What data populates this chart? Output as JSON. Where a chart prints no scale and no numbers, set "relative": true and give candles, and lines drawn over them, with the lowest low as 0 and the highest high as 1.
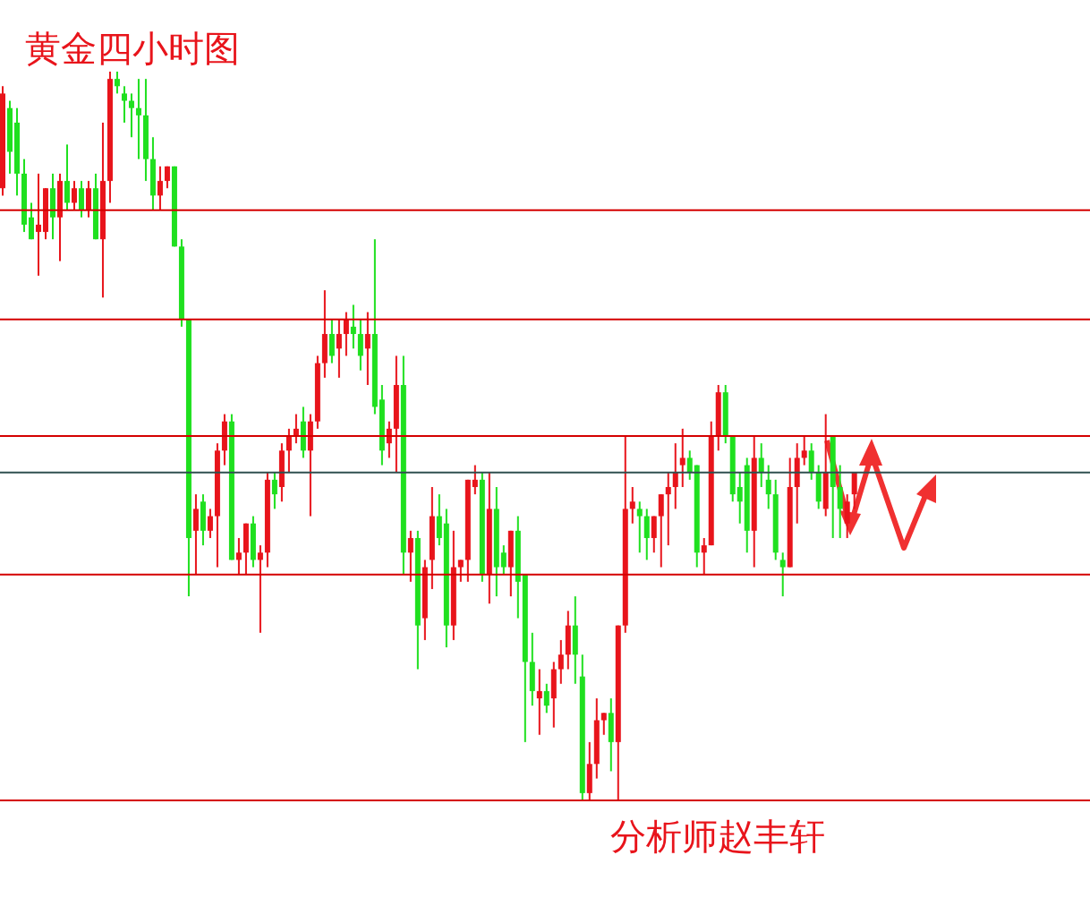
{
  "chart_data": {
    "type": "candlestick",
    "title": "黄金四小时图",
    "relative": true,
    "tick_labels": false,
    "annotations": [
      "分析师赵丰轩"
    ],
    "categories": [
      null,
      null,
      null,
      null,
      null,
      null,
      null,
      null,
      null,
      null,
      null,
      null,
      null,
      null,
      null,
      null,
      null,
      null,
      null,
      null,
      null,
      null,
      null,
      null,
      null,
      null,
      null,
      null,
      null,
      null,
      null,
      null,
      null,
      null,
      null,
      null,
      null,
      null,
      null,
      null,
      null,
      null,
      null,
      null,
      null,
      null,
      null,
      null,
      null,
      null,
      null,
      null,
      null,
      null,
      null,
      null,
      null,
      null,
      null,
      null,
      null,
      null,
      null,
      null,
      null,
      null,
      null,
      null,
      null,
      null,
      null,
      null,
      null,
      null,
      null,
      null,
      null,
      null,
      null,
      null,
      null,
      null,
      null,
      null,
      null,
      null,
      null,
      null,
      null,
      null,
      null,
      null,
      null,
      null,
      null,
      null,
      null,
      null,
      null,
      null,
      null,
      null,
      null,
      null,
      null,
      null,
      null,
      null,
      null,
      null,
      null,
      null,
      null,
      null,
      null,
      null,
      null,
      null,
      null,
      null
    ],
    "ohlc": [
      [
        0.84,
        0.98,
        0.83,
        0.97
      ],
      [
        0.95,
        0.96,
        0.86,
        0.89
      ],
      [
        0.93,
        0.95,
        0.83,
        0.86
      ],
      [
        0.86,
        0.88,
        0.78,
        0.79
      ],
      [
        0.8,
        0.82,
        0.77,
        0.77
      ],
      [
        0.78,
        0.86,
        0.72,
        0.79
      ],
      [
        0.78,
        0.84,
        0.77,
        0.84
      ],
      [
        0.84,
        0.86,
        0.77,
        0.8
      ],
      [
        0.8,
        0.86,
        0.74,
        0.85
      ],
      [
        0.85,
        0.9,
        0.81,
        0.82
      ],
      [
        0.82,
        0.85,
        0.81,
        0.84
      ],
      [
        0.84,
        0.85,
        0.8,
        0.81
      ],
      [
        0.81,
        0.85,
        0.8,
        0.84
      ],
      [
        0.84,
        0.86,
        0.77,
        0.77
      ],
      [
        0.77,
        0.93,
        0.69,
        0.85
      ],
      [
        0.85,
        1.0,
        0.82,
        0.99
      ],
      [
        0.99,
        1.0,
        0.97,
        0.98
      ],
      [
        0.97,
        0.98,
        0.93,
        0.96
      ],
      [
        0.96,
        0.97,
        0.91,
        0.95
      ],
      [
        0.95,
        0.99,
        0.88,
        0.94
      ],
      [
        0.94,
        0.99,
        0.85,
        0.88
      ],
      [
        0.88,
        0.91,
        0.81,
        0.83
      ],
      [
        0.83,
        0.87,
        0.81,
        0.85
      ],
      [
        0.85,
        0.87,
        0.84,
        0.87
      ],
      [
        0.87,
        0.87,
        0.76,
        0.76
      ],
      [
        0.76,
        0.77,
        0.65,
        0.66
      ],
      [
        0.66,
        0.66,
        0.28,
        0.36
      ],
      [
        0.37,
        0.42,
        0.31,
        0.4
      ],
      [
        0.41,
        0.42,
        0.35,
        0.37
      ],
      [
        0.37,
        0.4,
        0.36,
        0.39
      ],
      [
        0.39,
        0.49,
        0.32,
        0.48
      ],
      [
        0.48,
        0.53,
        0.46,
        0.52
      ],
      [
        0.52,
        0.53,
        0.33,
        0.33
      ],
      [
        0.33,
        0.36,
        0.31,
        0.34
      ],
      [
        0.34,
        0.38,
        0.31,
        0.38
      ],
      [
        0.38,
        0.39,
        0.32,
        0.33
      ],
      [
        0.33,
        0.35,
        0.23,
        0.34
      ],
      [
        0.34,
        0.45,
        0.32,
        0.44
      ],
      [
        0.44,
        0.45,
        0.4,
        0.42
      ],
      [
        0.43,
        0.49,
        0.41,
        0.48
      ],
      [
        0.48,
        0.51,
        0.45,
        0.5
      ],
      [
        0.5,
        0.53,
        0.49,
        0.51
      ],
      [
        0.52,
        0.54,
        0.47,
        0.48
      ],
      [
        0.48,
        0.53,
        0.39,
        0.52
      ],
      [
        0.52,
        0.61,
        0.51,
        0.6
      ],
      [
        0.6,
        0.7,
        0.58,
        0.64
      ],
      [
        0.64,
        0.66,
        0.6,
        0.61
      ],
      [
        0.62,
        0.66,
        0.58,
        0.64
      ],
      [
        0.64,
        0.67,
        0.61,
        0.66
      ],
      [
        0.65,
        0.68,
        0.62,
        0.64
      ],
      [
        0.64,
        0.66,
        0.59,
        0.61
      ],
      [
        0.62,
        0.67,
        0.57,
        0.64
      ],
      [
        0.64,
        0.77,
        0.53,
        0.54
      ],
      [
        0.55,
        0.57,
        0.46,
        0.48
      ],
      [
        0.49,
        0.52,
        0.47,
        0.51
      ],
      [
        0.51,
        0.61,
        0.45,
        0.57
      ],
      [
        0.57,
        0.61,
        0.31,
        0.34
      ],
      [
        0.34,
        0.37,
        0.3,
        0.36
      ],
      [
        0.36,
        0.37,
        0.18,
        0.24
      ],
      [
        0.25,
        0.33,
        0.22,
        0.32
      ],
      [
        0.33,
        0.43,
        0.29,
        0.39
      ],
      [
        0.39,
        0.42,
        0.35,
        0.36
      ],
      [
        0.38,
        0.4,
        0.21,
        0.24
      ],
      [
        0.24,
        0.37,
        0.22,
        0.32
      ],
      [
        0.32,
        0.33,
        0.3,
        0.33
      ],
      [
        0.33,
        0.44,
        0.3,
        0.44
      ],
      [
        0.43,
        0.46,
        0.42,
        0.44
      ],
      [
        0.44,
        0.45,
        0.3,
        0.31
      ],
      [
        0.31,
        0.45,
        0.27,
        0.4
      ],
      [
        0.4,
        0.43,
        0.28,
        0.32
      ],
      [
        0.34,
        0.35,
        0.31,
        0.32
      ],
      [
        0.32,
        0.37,
        0.28,
        0.37
      ],
      [
        0.37,
        0.39,
        0.25,
        0.3
      ],
      [
        0.31,
        0.31,
        0.08,
        0.19
      ],
      [
        0.19,
        0.23,
        0.13,
        0.15
      ],
      [
        0.14,
        0.18,
        0.09,
        0.15
      ],
      [
        0.15,
        0.16,
        0.12,
        0.13
      ],
      [
        0.14,
        0.19,
        0.1,
        0.18
      ],
      [
        0.18,
        0.22,
        0.16,
        0.2
      ],
      [
        0.2,
        0.26,
        0.18,
        0.24
      ],
      [
        0.24,
        0.28,
        0.16,
        0.2
      ],
      [
        0.17,
        0.2,
        0.0,
        0.01
      ],
      [
        0.01,
        0.08,
        0.0,
        0.05
      ],
      [
        0.05,
        0.14,
        0.03,
        0.11
      ],
      [
        0.11,
        0.12,
        0.09,
        0.12
      ],
      [
        0.12,
        0.14,
        0.04,
        0.08
      ],
      [
        0.08,
        0.24,
        0.0,
        0.24
      ],
      [
        0.24,
        0.5,
        0.23,
        0.4
      ],
      [
        0.4,
        0.43,
        0.38,
        0.41
      ],
      [
        0.4,
        0.41,
        0.34,
        0.39
      ],
      [
        0.39,
        0.4,
        0.33,
        0.36
      ],
      [
        0.36,
        0.39,
        0.34,
        0.39
      ],
      [
        0.39,
        0.42,
        0.32,
        0.42
      ],
      [
        0.42,
        0.45,
        0.35,
        0.43
      ],
      [
        0.43,
        0.49,
        0.4,
        0.45
      ],
      [
        0.46,
        0.51,
        0.43,
        0.47
      ],
      [
        0.47,
        0.48,
        0.44,
        0.45
      ],
      [
        0.46,
        0.46,
        0.32,
        0.34
      ],
      [
        0.34,
        0.36,
        0.31,
        0.35
      ],
      [
        0.35,
        0.52,
        0.35,
        0.5
      ],
      [
        0.5,
        0.57,
        0.48,
        0.56
      ],
      [
        0.56,
        0.57,
        0.49,
        0.5
      ],
      [
        0.5,
        0.5,
        0.41,
        0.42
      ],
      [
        0.43,
        0.45,
        0.38,
        0.41
      ],
      [
        0.46,
        0.47,
        0.34,
        0.37
      ],
      [
        0.37,
        0.5,
        0.32,
        0.47
      ],
      [
        0.47,
        0.49,
        0.43,
        0.45
      ],
      [
        0.44,
        0.46,
        0.4,
        0.42
      ],
      [
        0.42,
        0.44,
        0.33,
        0.34
      ],
      [
        0.33,
        0.34,
        0.28,
        0.32
      ],
      [
        0.32,
        0.47,
        0.32,
        0.43
      ],
      [
        0.43,
        0.49,
        0.38,
        0.47
      ],
      [
        0.47,
        0.5,
        0.46,
        0.48
      ],
      [
        0.48,
        0.49,
        0.44,
        0.45
      ],
      [
        0.45,
        0.46,
        0.4,
        0.41
      ],
      [
        0.4,
        0.53,
        0.39,
        0.45
      ],
      [
        0.5,
        0.5,
        0.36,
        0.43
      ],
      [
        0.43,
        0.46,
        0.36,
        0.4
      ],
      [
        0.38,
        0.42,
        0.36,
        0.41
      ],
      [
        0.42,
        0.45,
        0.4,
        0.45
      ]
    ],
    "ref_lines": [
      {
        "axis": "y",
        "value": 0.81,
        "color": "#d40000"
      },
      {
        "axis": "y",
        "value": 0.66,
        "color": "#d40000"
      },
      {
        "axis": "y",
        "value": 0.5,
        "color": "#d40000"
      },
      {
        "axis": "y",
        "value": 0.45,
        "color": "#2f4f4f"
      },
      {
        "axis": "y",
        "value": 0.31,
        "color": "#d40000"
      },
      {
        "axis": "y",
        "value": 0.0,
        "color": "#d40000"
      }
    ]
  }
}
